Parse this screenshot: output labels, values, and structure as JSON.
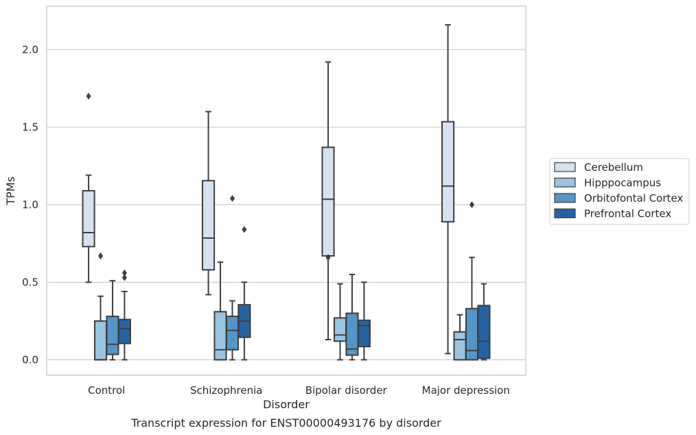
{
  "chart_data": {
    "type": "box",
    "title": "",
    "caption": "Transcript expression for ENST00000493176 by disorder",
    "xlabel": "Disorder",
    "ylabel": "TPMs",
    "ylim": [
      -0.1,
      2.28
    ],
    "yticks": [
      "0.0",
      "0.5",
      "1.0",
      "1.5",
      "2.0"
    ],
    "grid": "horizontal",
    "legend_position": "right",
    "categories": [
      "Control",
      "Schizophrenia",
      "Bipolar disorder",
      "Major depression"
    ],
    "series": [
      {
        "name": "Cerebellum",
        "color": "#d4e2f2",
        "boxes": [
          {
            "min": 0.5,
            "q1": 0.73,
            "median": 0.82,
            "q3": 1.09,
            "max": 1.19,
            "outliers": [
              1.7
            ]
          },
          {
            "min": 0.42,
            "q1": 0.58,
            "median": 0.785,
            "q3": 1.155,
            "max": 1.6,
            "outliers": []
          },
          {
            "min": 0.13,
            "q1": 0.67,
            "median": 1.035,
            "q3": 1.37,
            "max": 1.92,
            "outliers": [
              0.66
            ]
          },
          {
            "min": 0.04,
            "q1": 0.89,
            "median": 1.12,
            "q3": 1.535,
            "max": 2.16,
            "outliers": []
          }
        ]
      },
      {
        "name": "Hipppocampus",
        "color": "#9ac4e0",
        "boxes": [
          {
            "min": 0.0,
            "q1": 0.0,
            "median": 0.0,
            "q3": 0.25,
            "max": 0.41,
            "outliers": [
              0.67
            ]
          },
          {
            "min": 0.0,
            "q1": 0.0,
            "median": 0.065,
            "q3": 0.31,
            "max": 0.63,
            "outliers": []
          },
          {
            "min": 0.0,
            "q1": 0.12,
            "median": 0.16,
            "q3": 0.27,
            "max": 0.49,
            "outliers": []
          },
          {
            "min": 0.0,
            "q1": 0.0,
            "median": 0.13,
            "q3": 0.18,
            "max": 0.29,
            "outliers": []
          }
        ]
      },
      {
        "name": "Orbitofontal Cortex",
        "color": "#5596c8",
        "boxes": [
          {
            "min": 0.0,
            "q1": 0.035,
            "median": 0.1,
            "q3": 0.28,
            "max": 0.51,
            "outliers": []
          },
          {
            "min": 0.0,
            "q1": 0.065,
            "median": 0.19,
            "q3": 0.28,
            "max": 0.38,
            "outliers": [
              1.04
            ]
          },
          {
            "min": 0.0,
            "q1": 0.03,
            "median": 0.07,
            "q3": 0.3,
            "max": 0.55,
            "outliers": []
          },
          {
            "min": 0.0,
            "q1": 0.0,
            "median": 0.06,
            "q3": 0.33,
            "max": 0.66,
            "outliers": [
              1.0
            ]
          }
        ]
      },
      {
        "name": "Prefrontal Cortex",
        "color": "#2563a5",
        "boxes": [
          {
            "min": 0.0,
            "q1": 0.105,
            "median": 0.2,
            "q3": 0.26,
            "max": 0.44,
            "outliers": [
              0.53,
              0.56
            ]
          },
          {
            "min": 0.0,
            "q1": 0.145,
            "median": 0.25,
            "q3": 0.355,
            "max": 0.5,
            "outliers": [
              0.84
            ]
          },
          {
            "min": 0.0,
            "q1": 0.085,
            "median": 0.22,
            "q3": 0.255,
            "max": 0.5,
            "outliers": []
          },
          {
            "min": 0.0,
            "q1": 0.01,
            "median": 0.12,
            "q3": 0.35,
            "max": 0.49,
            "outliers": []
          }
        ]
      }
    ]
  }
}
